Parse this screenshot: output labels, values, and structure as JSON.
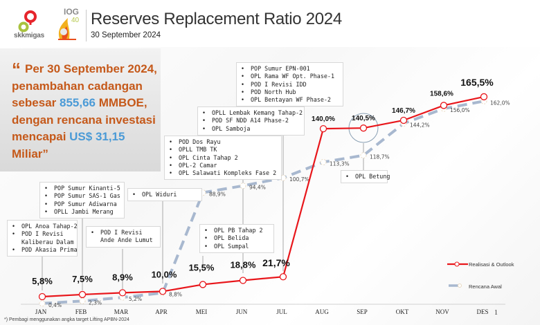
{
  "header": {
    "logo_skk_text": "skkmigas",
    "logo_iog_text": "IOG",
    "logo_iog_sub": "40",
    "title": "Reserves Replacement Ratio 2024",
    "subtitle": "30 September  2024"
  },
  "quote": {
    "mark": "“",
    "part1": "Per 30 September 2024, penambahan cadangan sebesar ",
    "highlight1": "855,66",
    "part2": " MMBOE, dengan rencana investasi mencapai ",
    "highlight2": "US$ 31,15",
    "part3": " Miliar”",
    "text_color": "#c5591a",
    "highlight_color": "#4a9ad6"
  },
  "annotations": [
    {
      "month": "JAN",
      "items": [
        "OPL Anoa Tahap-2",
        "POD I Revisi Kaliberau Dalam",
        "POD Akasia Prima"
      ]
    },
    {
      "month": "FEB",
      "items": [
        "POP Sumur Kinanti-5",
        "POP Sumur SAS-1 Gas",
        "POP Sumur Adiwarna",
        "OPLL Jambi Merang"
      ]
    },
    {
      "month": "MAR",
      "items": [
        "POD I Revisi Ande Ande Lumut"
      ]
    },
    {
      "month": "APR",
      "items": [
        "OPL Widuri"
      ]
    },
    {
      "month": "MEI",
      "items": [
        "POD Dos Rayu",
        "OPLL TMB TK",
        "OPL Cinta Tahap 2",
        "OPL-2 Camar",
        "OPL Salawati Kompleks Fase 2"
      ]
    },
    {
      "month": "JUN",
      "items": [
        "OPL PB Tahap 2",
        "OPL Belida",
        "OPL Sumpal"
      ]
    },
    {
      "month": "JUL",
      "items": [
        "OPLL Lembak Kemang Tahap-2",
        "POD SF NDD A14 Phase-2",
        "OPL Samboja"
      ]
    },
    {
      "month": "AUG",
      "items": [
        "POP Sumur EPN-001",
        "OPL Rama WF Opt. Phase-1",
        "POD I Revisi IDD",
        "POD North Hub",
        "OPL Bentayan WF Phase-2"
      ]
    },
    {
      "month": "SEP",
      "items": [
        "OPL Betung"
      ]
    }
  ],
  "footnote": "*) Pembagi menggunakan angka target Lifting APBN-2024",
  "page_number": "1",
  "chart_data": {
    "type": "line",
    "title": "Reserves Replacement Ratio 2024",
    "categories": [
      "JAN",
      "FEB",
      "MAR",
      "APR",
      "MEI",
      "JUN",
      "JUL",
      "AUG",
      "SEP",
      "OKT",
      "NOV",
      "DES"
    ],
    "series": [
      {
        "name": "Realisasi & Outlook",
        "color": "#e8161b",
        "style": "solid",
        "values": [
          5.8,
          7.5,
          8.9,
          10.0,
          15.5,
          18.8,
          21.7,
          140.0,
          140.5,
          146.7,
          158.6,
          165.5
        ],
        "labels": [
          "5,8%",
          "7,5%",
          "8,9%",
          "10,0%",
          "15,5%",
          "18,8%",
          "21,7%",
          "140,0%",
          "140,5%",
          "146,7%",
          "158,6%",
          "165,5%"
        ]
      },
      {
        "name": "Rencana Awal",
        "color": "#a8b8cf",
        "style": "dashed",
        "values": [
          0.4,
          2.3,
          5.2,
          8.8,
          88.9,
          94.4,
          100.7,
          113.3,
          118.7,
          144.2,
          156.0,
          162.0
        ],
        "labels": [
          "0,4%",
          "2,3%",
          "5,2%",
          "8,8%",
          "88,9%",
          "94,4%",
          "100,7%",
          "113,3%",
          "118,7%",
          "144,2%",
          "156,0%",
          "162,0%"
        ]
      }
    ],
    "highlight_month": "SEP",
    "xlabel": "",
    "ylabel": "",
    "ylim": [
      0,
      170
    ],
    "grid": false,
    "legend_position": "bottom-right"
  }
}
